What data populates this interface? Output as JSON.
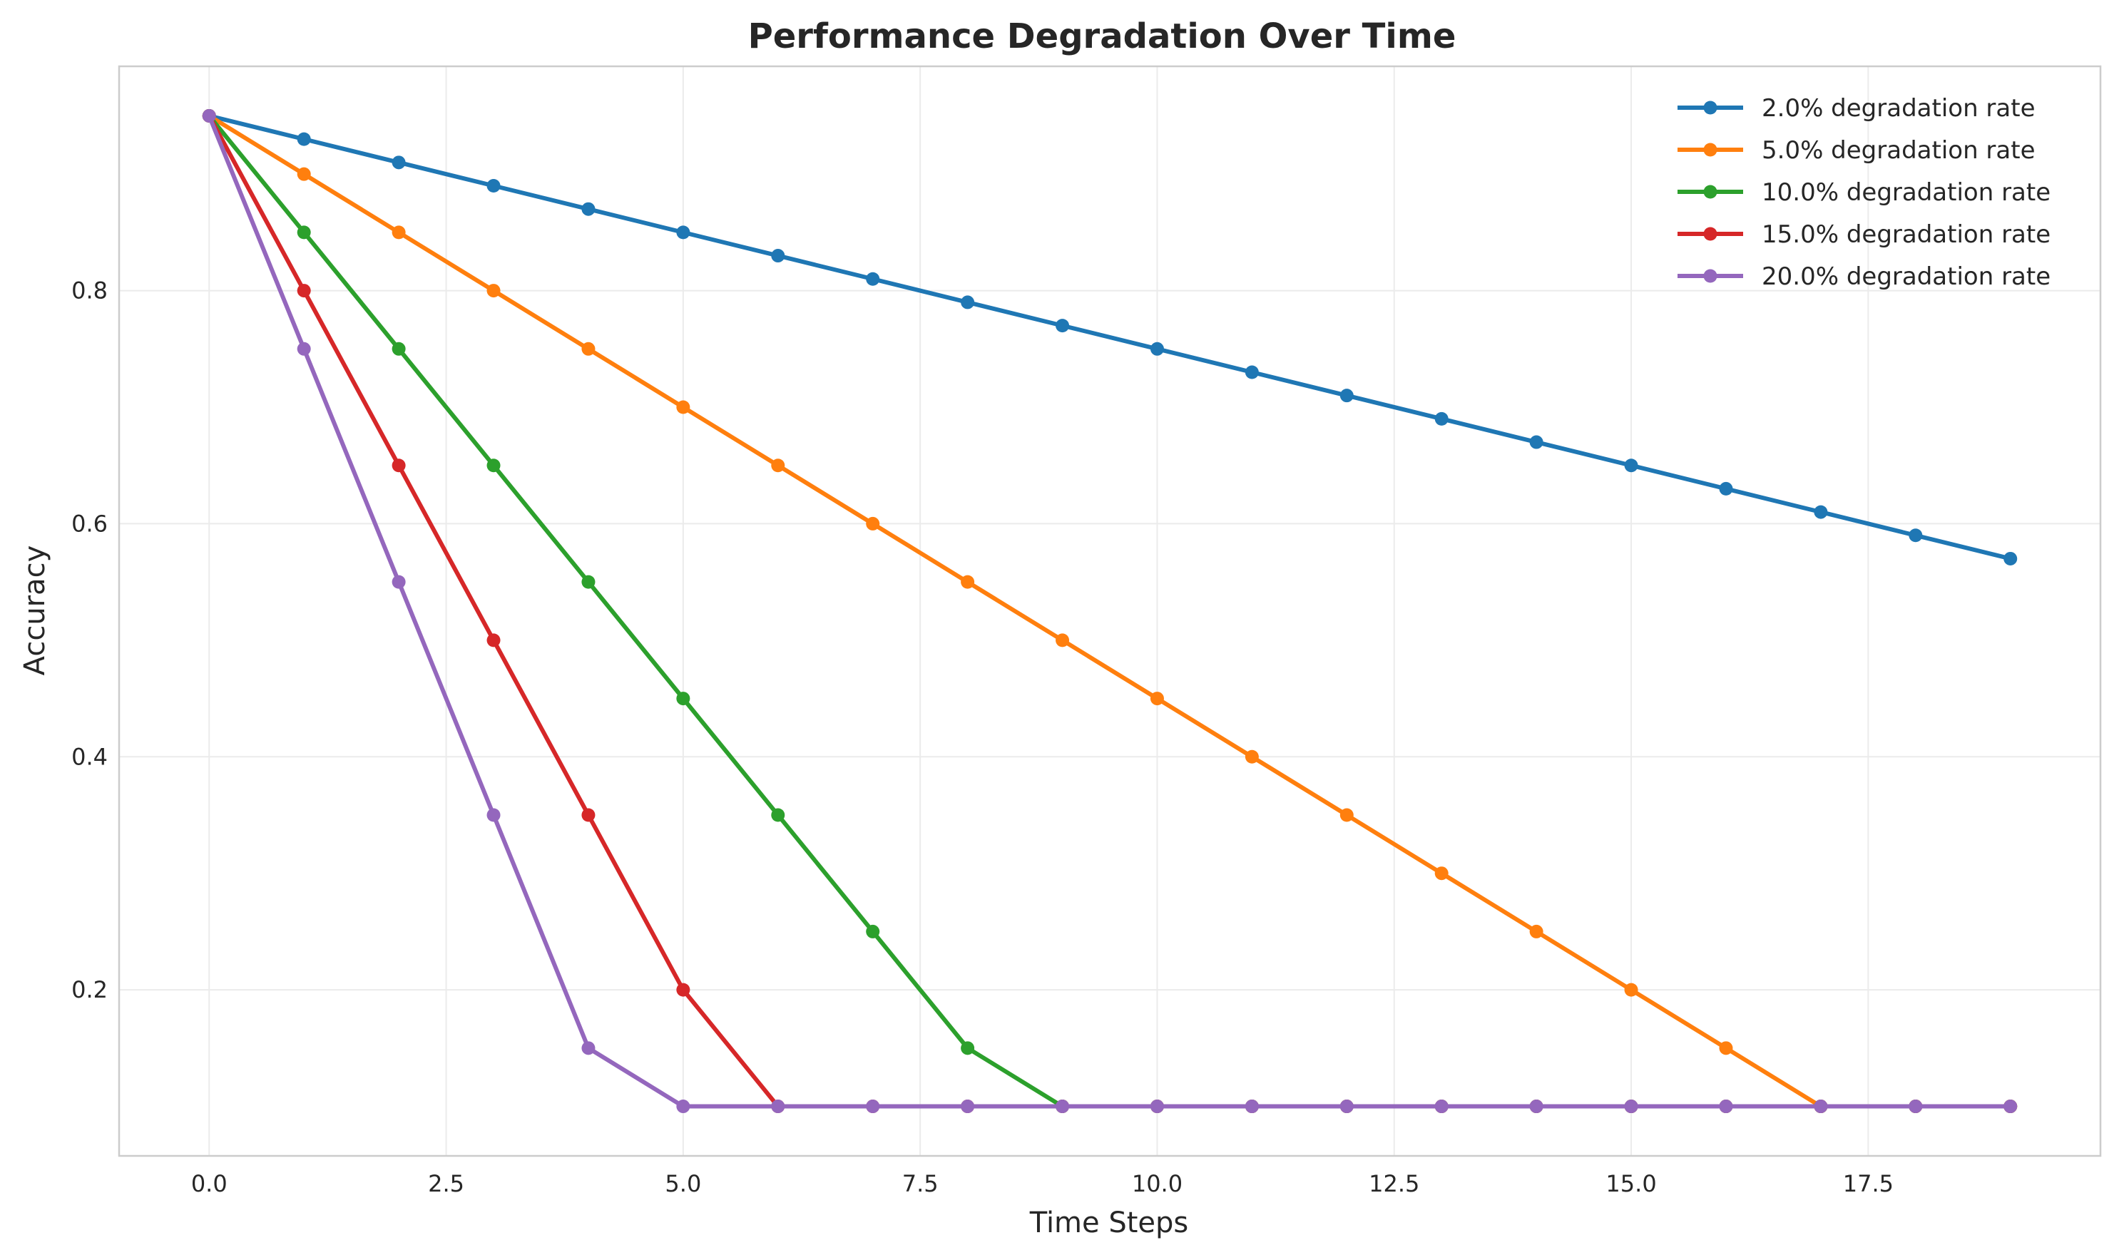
{
  "chart_data": {
    "type": "line",
    "title": "Performance Degradation Over Time",
    "xlabel": "Time Steps",
    "ylabel": "Accuracy",
    "xlim": [
      -0.95,
      19.95
    ],
    "ylim": [
      0.0575,
      0.9925
    ],
    "xticks": [
      0,
      2.5,
      5,
      7.5,
      10,
      12.5,
      15,
      17.5
    ],
    "xtick_labels": [
      "0.0",
      "2.5",
      "5.0",
      "7.5",
      "10.0",
      "12.5",
      "15.0",
      "17.5"
    ],
    "yticks": [
      0.2,
      0.4,
      0.6,
      0.8
    ],
    "ytick_labels": [
      "0.2",
      "0.4",
      "0.6",
      "0.8"
    ],
    "grid": true,
    "legend_position": "top-right",
    "x": [
      0,
      1,
      2,
      3,
      4,
      5,
      6,
      7,
      8,
      9,
      10,
      11,
      12,
      13,
      14,
      15,
      16,
      17,
      18,
      19
    ],
    "series": [
      {
        "name": "2.0% degradation rate",
        "color": "#1f77b4",
        "values": [
          0.95,
          0.93,
          0.91,
          0.89,
          0.87,
          0.85,
          0.83,
          0.81,
          0.79,
          0.77,
          0.75,
          0.73,
          0.71,
          0.69,
          0.67,
          0.65,
          0.63,
          0.61,
          0.59,
          0.57
        ]
      },
      {
        "name": "5.0% degradation rate",
        "color": "#ff7f0e",
        "values": [
          0.95,
          0.9,
          0.85,
          0.8,
          0.75,
          0.7,
          0.65,
          0.6,
          0.55,
          0.5,
          0.45,
          0.4,
          0.35,
          0.3,
          0.25,
          0.2,
          0.15,
          0.1,
          0.1,
          0.1
        ]
      },
      {
        "name": "10.0% degradation rate",
        "color": "#2ca02c",
        "values": [
          0.95,
          0.85,
          0.75,
          0.65,
          0.55,
          0.45,
          0.35,
          0.25,
          0.15,
          0.1,
          0.1,
          0.1,
          0.1,
          0.1,
          0.1,
          0.1,
          0.1,
          0.1,
          0.1,
          0.1
        ]
      },
      {
        "name": "15.0% degradation rate",
        "color": "#d62728",
        "values": [
          0.95,
          0.8,
          0.65,
          0.5,
          0.35,
          0.2,
          0.1,
          0.1,
          0.1,
          0.1,
          0.1,
          0.1,
          0.1,
          0.1,
          0.1,
          0.1,
          0.1,
          0.1,
          0.1,
          0.1
        ]
      },
      {
        "name": "20.0% degradation rate",
        "color": "#9467bd",
        "values": [
          0.95,
          0.75,
          0.55,
          0.35,
          0.15,
          0.1,
          0.1,
          0.1,
          0.1,
          0.1,
          0.1,
          0.1,
          0.1,
          0.1,
          0.1,
          0.1,
          0.1,
          0.1,
          0.1,
          0.1
        ]
      }
    ]
  }
}
